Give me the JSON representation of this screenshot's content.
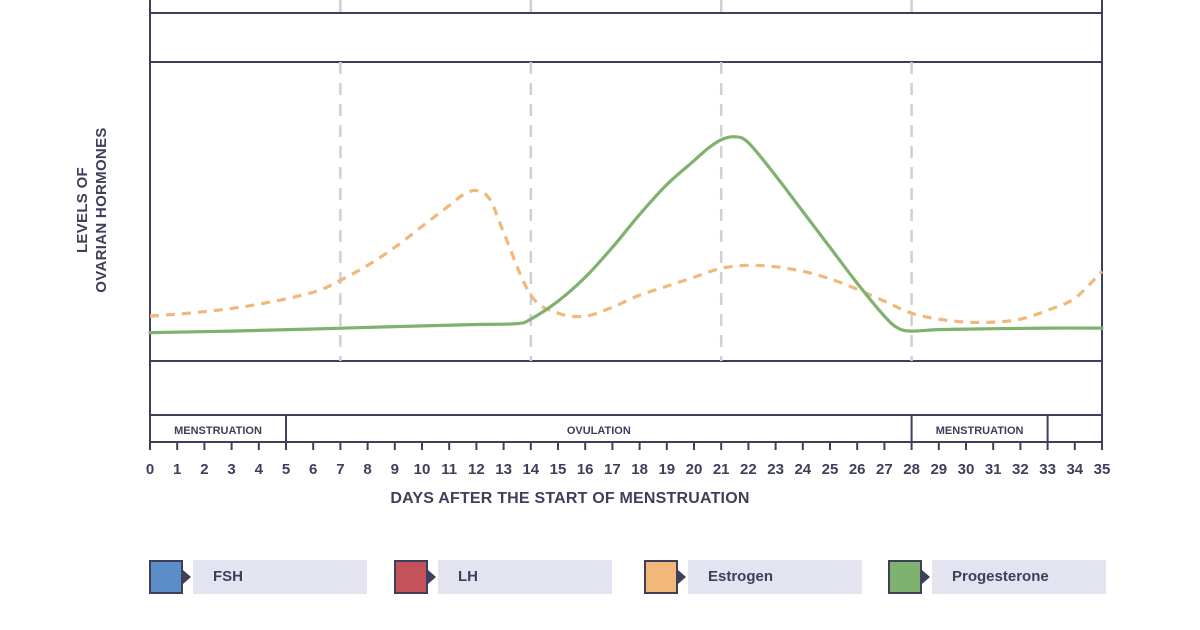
{
  "chart_data": {
    "type": "line",
    "ylabel_lines": [
      "LEVELS OF",
      "OVARIAN HORMONES"
    ],
    "xlabel": "DAYS AFTER THE START OF MENSTRUATION",
    "xlim": [
      0,
      35
    ],
    "x_ticks": [
      0,
      1,
      2,
      3,
      4,
      5,
      6,
      7,
      8,
      9,
      10,
      11,
      12,
      13,
      14,
      15,
      16,
      17,
      18,
      19,
      20,
      21,
      22,
      23,
      24,
      25,
      26,
      27,
      28,
      29,
      30,
      31,
      32,
      33,
      34,
      35
    ],
    "vertical_dashed_lines_at_day": [
      7,
      14,
      21,
      28
    ],
    "phases": [
      {
        "label": "MENSTRUATION",
        "start": 0,
        "end": 5
      },
      {
        "label": "OVULATION",
        "start": 5,
        "end": 28
      },
      {
        "label": "MENSTRUATION",
        "start": 28,
        "end": 33
      },
      {
        "label": "",
        "start": 33,
        "end": 35
      }
    ],
    "ylim": [
      0,
      100
    ],
    "grid": "vertical dashed",
    "legend_position": "bottom",
    "series": [
      {
        "name": "Estrogen",
        "color": "#f1b87a",
        "style": "dashed",
        "x": [
          0,
          2,
          4,
          6,
          7,
          8,
          9,
          10,
          11,
          11.5,
          12,
          12.5,
          13,
          14,
          15,
          16,
          17,
          18,
          19,
          20,
          21,
          22,
          23,
          24,
          25,
          26,
          27,
          28,
          29,
          30,
          31,
          32,
          33,
          34,
          35
        ],
        "y": [
          15,
          16.5,
          19,
          23,
          27,
          32,
          38,
          45,
          52,
          55.5,
          57,
          54,
          43,
          22,
          16,
          15,
          18,
          22,
          25,
          28,
          31,
          32,
          31.5,
          30,
          27.5,
          24,
          20,
          16,
          14,
          13,
          13,
          14,
          17,
          21,
          30
        ]
      },
      {
        "name": "Progesterone",
        "color": "#7fb26e",
        "style": "solid",
        "x": [
          0,
          3,
          6,
          9,
          12,
          13.5,
          14,
          15,
          16,
          17,
          18,
          19,
          20,
          20.5,
          21,
          21.5,
          22,
          23,
          24,
          25,
          26,
          27,
          27.5,
          28,
          29,
          31,
          33,
          35
        ],
        "y": [
          9.5,
          10,
          10.7,
          11.5,
          12.2,
          12.5,
          14,
          20,
          28,
          38,
          49,
          59,
          67,
          71,
          74,
          75,
          73,
          62,
          50,
          38,
          26,
          15,
          11,
          10,
          10.5,
          10.8,
          11,
          11
        ]
      },
      {
        "name": "FSH",
        "color": "#5b8ec9",
        "x": [],
        "y": []
      },
      {
        "name": "LH",
        "color": "#c5515a",
        "x": [],
        "y": []
      }
    ]
  },
  "legend": [
    {
      "label": "FSH",
      "color": "#5b8ec9"
    },
    {
      "label": "LH",
      "color": "#c5515a"
    },
    {
      "label": "Estrogen",
      "color": "#f1b87a"
    },
    {
      "label": "Progesterone",
      "color": "#7fb26e"
    }
  ]
}
